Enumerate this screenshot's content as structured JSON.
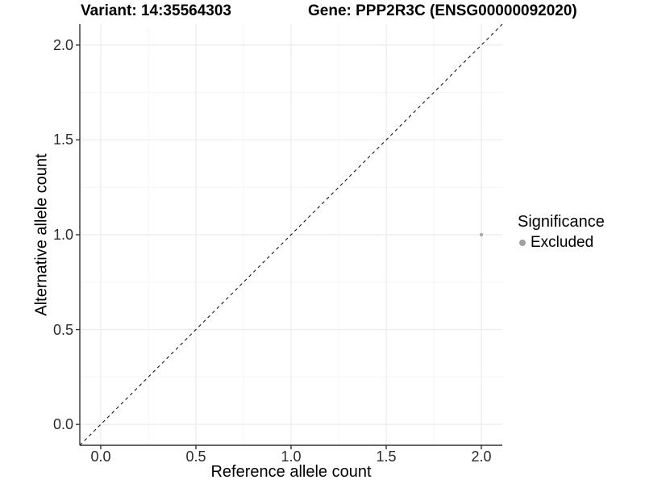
{
  "chart_data": {
    "type": "scatter",
    "title_left": "Variant: 14:35564303",
    "title_right": "Gene: PPP2R3C (ENSG00000092020)",
    "xlabel": "Reference allele count",
    "ylabel": "Alternative allele count",
    "xlim": [
      -0.11,
      2.11
    ],
    "ylim": [
      -0.11,
      2.11
    ],
    "x_major_ticks": [
      0.0,
      0.5,
      1.0,
      1.5,
      2.0
    ],
    "y_major_ticks": [
      0.0,
      0.5,
      1.0,
      1.5,
      2.0
    ],
    "x_tick_labels": [
      "0.0",
      "0.5",
      "1.0",
      "1.5",
      "2.0"
    ],
    "y_tick_labels": [
      "0.0",
      "0.5",
      "1.0",
      "1.5",
      "2.0"
    ],
    "x_minor_ticks": [
      0.25,
      0.75,
      1.25,
      1.75
    ],
    "y_minor_ticks": [
      0.25,
      0.75,
      1.25,
      1.75
    ],
    "grid": true,
    "reference_line": {
      "type": "identity",
      "style": "dashed",
      "color": "#000000",
      "dash": "4,4"
    },
    "series": [
      {
        "name": "Excluded",
        "color": "#a6a6a6",
        "point_radius": 2.1,
        "points": [
          {
            "x": 2.0,
            "y": 1.0
          }
        ]
      }
    ],
    "legend": {
      "title": "Significance",
      "position": "right",
      "entries": [
        {
          "label": "Excluded",
          "color": "#a0a0a0"
        }
      ]
    },
    "colors": {
      "grid_major": "#ebebeb",
      "grid_minor": "#f5f5f5",
      "axis_line": "#333333",
      "tick_mark": "#333333"
    }
  }
}
